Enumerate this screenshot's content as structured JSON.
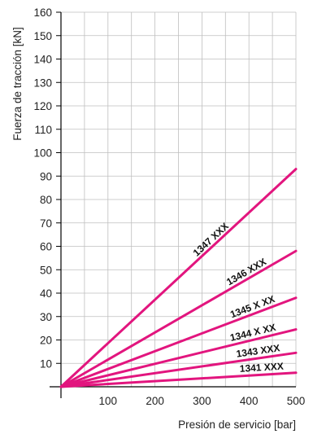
{
  "chart_data": {
    "type": "line",
    "xlabel": "Presión de servicio [bar]",
    "ylabel": "Fuerza de tracción [kN]",
    "xlim": [
      0,
      500
    ],
    "ylim": [
      0,
      160
    ],
    "xticks": [
      100,
      200,
      300,
      400,
      500
    ],
    "xtick_labels": [
      "100",
      "200",
      "300",
      "400",
      "500"
    ],
    "yticks": [
      10,
      20,
      30,
      40,
      50,
      60,
      70,
      80,
      90,
      100,
      110,
      120,
      130,
      140,
      150,
      160
    ],
    "ytick_labels": [
      "10",
      "20",
      "30",
      "40",
      "50",
      "60",
      "70",
      "80",
      "90",
      "100",
      "110",
      "120",
      "130",
      "140",
      "150",
      "160"
    ],
    "grid": true,
    "color": "#e2157e",
    "series": [
      {
        "name": "1347 XXX",
        "x": [
          0,
          500
        ],
        "y": [
          0,
          93
        ]
      },
      {
        "name": "1346 XXX",
        "x": [
          0,
          500
        ],
        "y": [
          0,
          58
        ]
      },
      {
        "name": "1345 X XX",
        "x": [
          0,
          500
        ],
        "y": [
          0,
          38
        ]
      },
      {
        "name": "1344 X XX",
        "x": [
          0,
          500
        ],
        "y": [
          0,
          24.5
        ]
      },
      {
        "name": "1343 XXX",
        "x": [
          0,
          500
        ],
        "y": [
          0,
          14.5
        ]
      },
      {
        "name": "1341 XXX",
        "x": [
          0,
          500
        ],
        "y": [
          0,
          6
        ]
      }
    ]
  }
}
